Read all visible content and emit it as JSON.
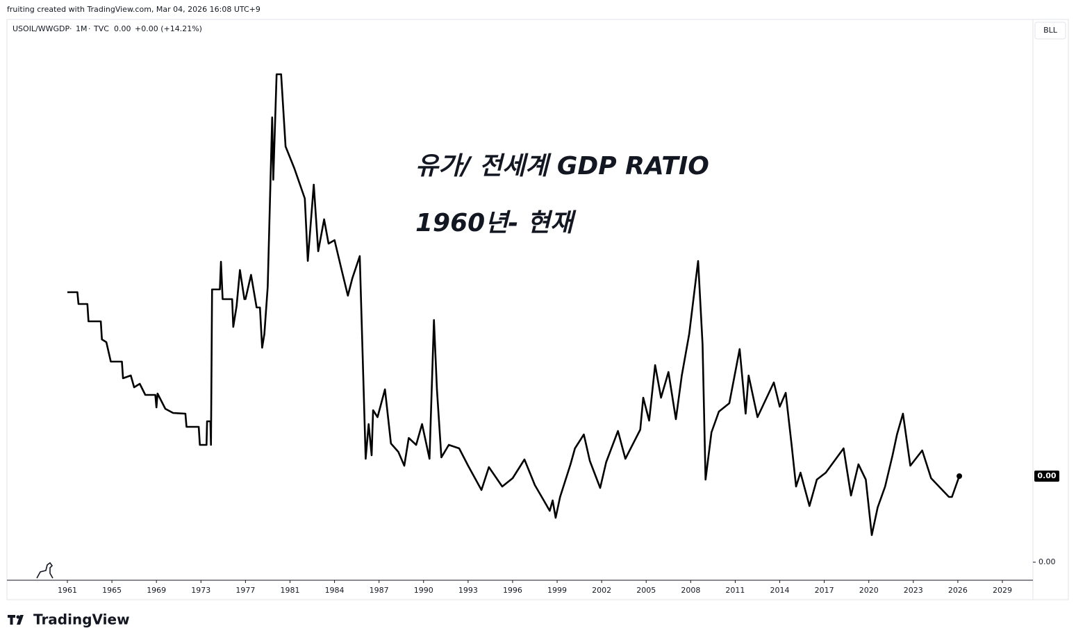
{
  "chart_data": {
    "type": "line",
    "header": "fruiting created with TradingView.com, Mar 04, 2026 16:08 UTC+9",
    "legend": {
      "interval": "1M",
      "source": "TVC",
      "price": "0.00",
      "change": "+0.00 (+14.21%)"
    },
    "annotations": [
      "유가/ 전세계 GDP RATIO",
      "1960년- 현재"
    ],
    "toolbar_label": "BLL",
    "price_label": "0.00",
    "brand": "TradingView",
    "x": [
      1961.0,
      1961.9,
      1962.0,
      1962.8,
      1962.9,
      1964.0,
      1964.1,
      1964.5,
      1964.9,
      1965.9,
      1966.0,
      1966.7,
      1967.0,
      1967.5,
      1968.0,
      1968.9,
      1969.0,
      1969.1,
      1969.8,
      1970.5,
      1971.6,
      1971.7,
      1972.8,
      1972.9,
      1973.5,
      1973.55,
      1973.85,
      1973.9,
      1974.0,
      1974.7,
      1974.8,
      1974.95,
      1975.8,
      1975.9,
      1976.2,
      1976.5,
      1976.9,
      1977.0,
      1977.5,
      1978.0,
      1978.3,
      1978.5,
      1978.7,
      1979.0,
      1979.4,
      1979.5,
      1979.8,
      1980.2,
      1980.6,
      1981.3,
      1982.0,
      1982.2,
      1982.6,
      1982.9,
      1983.3,
      1983.6,
      1984.0,
      1984.5,
      1984.9,
      1985.2,
      1985.7,
      1986.1,
      1986.3,
      1986.5,
      1986.6,
      1986.9,
      1987.4,
      1987.8,
      1988.3,
      1988.7,
      1989.0,
      1989.5,
      1989.9,
      1990.4,
      1990.7,
      1990.9,
      1991.2,
      1991.7,
      1992.4,
      1993.0,
      1993.9,
      1994.4,
      1995.3,
      1996.0,
      1996.8,
      1997.5,
      1998.1,
      1998.5,
      1998.7,
      1998.9,
      1999.2,
      1999.9,
      2000.2,
      2000.8,
      2001.2,
      2001.9,
      2002.3,
      2003.1,
      2003.6,
      2004.6,
      2004.8,
      2005.2,
      2005.6,
      2006.0,
      2006.5,
      2007.0,
      2007.4,
      2007.9,
      2008.3,
      2008.5,
      2008.8,
      2009.0,
      2009.4,
      2009.9,
      2010.6,
      2011.3,
      2011.7,
      2011.9,
      2012.5,
      2013.6,
      2014.0,
      2014.4,
      2014.8,
      2015.1,
      2015.4,
      2016.0,
      2016.5,
      2017.1,
      2018.3,
      2018.8,
      2019.3,
      2019.8,
      2020.2,
      2020.6,
      2021.1,
      2021.6,
      2021.9,
      2022.3,
      2022.8,
      2023.6,
      2024.2,
      2025.4,
      2025.6,
      2026.1
    ],
    "series": [
      {
        "name": "USOIL/WWGDP",
        "color": "#000000",
        "values": [
          0.000389,
          0.000389,
          0.000372,
          0.000372,
          0.000347,
          0.000347,
          0.000321,
          0.000317,
          0.000289,
          0.000289,
          0.000265,
          0.000269,
          0.000252,
          0.000257,
          0.000241,
          0.000241,
          0.000223,
          0.000243,
          0.000221,
          0.000215,
          0.000214,
          0.000195,
          0.000195,
          0.000169,
          0.000169,
          0.000203,
          0.000203,
          0.000169,
          0.000393,
          0.000393,
          0.000433,
          0.000379,
          0.000379,
          0.000339,
          0.000369,
          0.000421,
          0.000379,
          0.000379,
          0.000414,
          0.000367,
          0.000367,
          0.000309,
          0.000329,
          0.000397,
          0.000641,
          0.000551,
          0.000703,
          0.000703,
          0.000599,
          0.000567,
          0.000524,
          0.000434,
          0.000544,
          0.000448,
          0.000494,
          0.000459,
          0.000464,
          0.000419,
          0.000384,
          0.000409,
          0.000441,
          0.000149,
          0.000199,
          0.000154,
          0.000219,
          0.000209,
          0.000249,
          0.000171,
          0.000159,
          0.000139,
          0.000179,
          0.000169,
          0.000199,
          0.000149,
          0.000349,
          0.000249,
          0.000151,
          0.000169,
          0.000164,
          0.000139,
          0.000104,
          0.000137,
          0.000109,
          0.000121,
          0.000148,
          0.000111,
          8.9e-05,
          7.4e-05,
          8.9e-05,
          6.4e-05,
          9.4e-05,
          0.000141,
          0.000164,
          0.000184,
          0.000146,
          0.000107,
          0.000144,
          0.000189,
          0.000149,
          0.000191,
          0.000237,
          0.000204,
          0.000284,
          0.000237,
          0.000274,
          0.000206,
          0.000269,
          0.000329,
          0.000399,
          0.000434,
          0.000314,
          0.000119,
          0.000187,
          0.000217,
          0.000229,
          0.000307,
          0.000214,
          0.000269,
          0.000209,
          0.000259,
          0.000224,
          0.000244,
          0.000169,
          0.000109,
          0.000129,
          8.1e-05,
          0.000119,
          0.000129,
          0.000164,
          9.6e-05,
          0.000141,
          0.000119,
          3.9e-05,
          7.9e-05,
          0.000109,
          0.000154,
          0.000184,
          0.000214,
          0.000139,
          0.000161,
          0.000121,
          9.4e-05,
          9.4e-05,
          0.000124
        ]
      }
    ],
    "xticks": [
      1961,
      1965,
      1969,
      1973,
      1977,
      1981,
      1984,
      1987,
      1990,
      1993,
      1996,
      1999,
      2002,
      2005,
      2008,
      2011,
      2014,
      2017,
      2020,
      2023,
      2026,
      2029
    ],
    "ylim": [
      -2.6e-05,
      0.000782
    ],
    "yticks": [
      {
        "value": 0,
        "label": "0.00"
      }
    ]
  }
}
